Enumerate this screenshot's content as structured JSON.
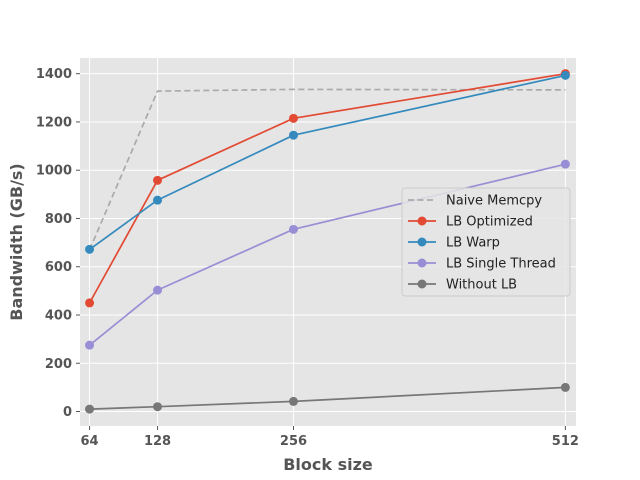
{
  "chart_data": {
    "type": "line",
    "title": "",
    "xlabel": "Block size",
    "ylabel": "Bandwidth (GB/s)",
    "x": [
      64,
      128,
      256,
      512
    ],
    "x_ticks": [
      "64",
      "128",
      "256",
      "512"
    ],
    "xlim": [
      55,
      522
    ],
    "ylim": [
      -60,
      1465
    ],
    "y_ticks": [
      0,
      200,
      400,
      600,
      800,
      1000,
      1200,
      1400
    ],
    "grid": true,
    "legend_position": "center-right",
    "series": [
      {
        "name": "Naive Memcpy",
        "color": "#aaaaaa",
        "dashed": true,
        "markers": false,
        "values": [
          670,
          1328,
          1335,
          1333
        ]
      },
      {
        "name": "LB Optimized",
        "color": "#e24a33",
        "dashed": false,
        "markers": true,
        "values": [
          450,
          958,
          1215,
          1400
        ]
      },
      {
        "name": "LB Warp",
        "color": "#348abd",
        "dashed": false,
        "markers": true,
        "values": [
          672,
          876,
          1145,
          1393
        ]
      },
      {
        "name": "LB Single Thread",
        "color": "#988ed5",
        "dashed": false,
        "markers": true,
        "values": [
          275,
          503,
          755,
          1025
        ]
      },
      {
        "name": "Without LB",
        "color": "#777777",
        "dashed": false,
        "markers": true,
        "values": [
          10,
          20,
          42,
          100
        ]
      }
    ]
  }
}
